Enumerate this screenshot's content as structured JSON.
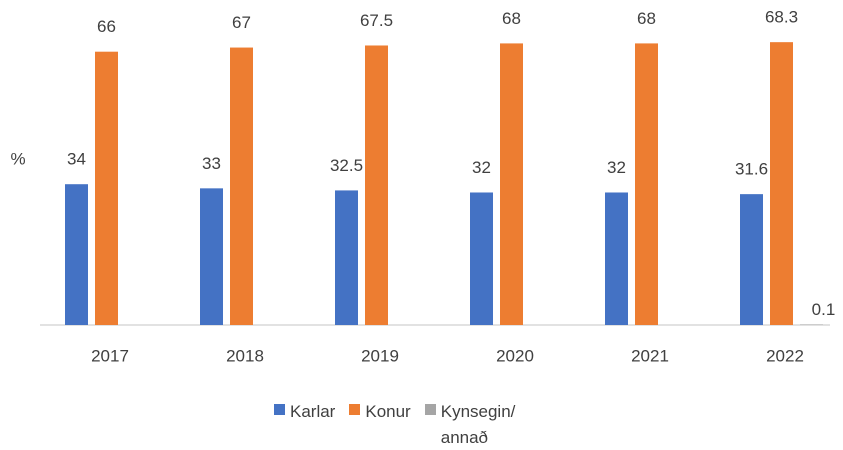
{
  "chart_data": {
    "type": "bar",
    "ylabel": "%",
    "categories": [
      "2017",
      "2018",
      "2019",
      "2020",
      "2021",
      "2022"
    ],
    "series": [
      {
        "name": "Karlar",
        "color": "#4472c4",
        "values": [
          34,
          33,
          32.5,
          32,
          32,
          31.6
        ]
      },
      {
        "name": "Konur",
        "color": "#ed7d31",
        "values": [
          66,
          67,
          67.5,
          68,
          68,
          68.3
        ]
      },
      {
        "name": "Kynsegin/annað",
        "color": "#a5a5a5",
        "values": [
          null,
          null,
          null,
          null,
          null,
          0.1
        ]
      }
    ],
    "ylim": [
      0,
      78
    ]
  }
}
